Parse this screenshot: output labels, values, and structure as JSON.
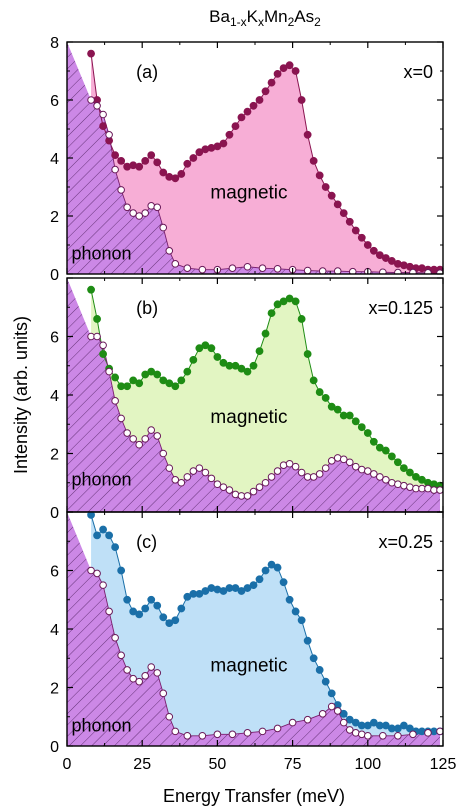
{
  "figure": {
    "title_main": "Ba",
    "title_sub1": "1-x",
    "title_k": "K",
    "title_sub2": "x",
    "title_mn": "Mn",
    "title_sub3": "2",
    "title_as": "As",
    "title_sub4": "2",
    "ylabel": "Intensity (arb. units)",
    "xlabel": "Energy Transfer (meV)"
  },
  "colors": {
    "phonon_hatch": "#cc88e6",
    "phonon_line": "#7a1f6e",
    "open_marker_edge": "#6a1a5a"
  },
  "chart_data": [
    {
      "type": "line",
      "panel": "(a)",
      "label": "x=0",
      "annotation_magnetic": "magnetic",
      "annotation_phonon": "phonon",
      "xlim": [
        0,
        125
      ],
      "ylim": [
        0,
        8
      ],
      "xticks": [
        0,
        25,
        50,
        75,
        100,
        125
      ],
      "yticks": [
        0,
        2,
        4,
        6,
        8
      ],
      "fill_color": "#f7aed6",
      "marker_color": "#8a1450",
      "series": [
        {
          "name": "total",
          "x": [
            8,
            10,
            12,
            14,
            16,
            18,
            20,
            22,
            24,
            26,
            28,
            30,
            32,
            34,
            36,
            38,
            40,
            42,
            44,
            46,
            48,
            50,
            52,
            54,
            56,
            58,
            60,
            62,
            64,
            66,
            68,
            70,
            72,
            74,
            76,
            78,
            80,
            82,
            84,
            86,
            88,
            90,
            92,
            94,
            96,
            98,
            100,
            102,
            104,
            106,
            108,
            110,
            112,
            114,
            116,
            118,
            120,
            122,
            124
          ],
          "y": [
            7.6,
            6.0,
            5.1,
            4.6,
            4.1,
            3.9,
            3.7,
            3.75,
            3.7,
            3.9,
            4.1,
            3.85,
            3.5,
            3.35,
            3.3,
            3.45,
            3.8,
            4.0,
            4.2,
            4.3,
            4.35,
            4.4,
            4.5,
            4.8,
            5.1,
            5.4,
            5.6,
            5.8,
            6.0,
            6.3,
            6.6,
            6.9,
            7.1,
            7.2,
            7.0,
            6.0,
            4.8,
            3.9,
            3.4,
            3.0,
            2.7,
            2.4,
            2.1,
            1.8,
            1.5,
            1.25,
            1.0,
            0.8,
            0.65,
            0.55,
            0.45,
            0.35,
            0.3,
            0.25,
            0.2,
            0.2,
            0.15,
            0.15,
            0.15
          ]
        },
        {
          "name": "phonon",
          "x": [
            8,
            10,
            12,
            14,
            16,
            18,
            20,
            22,
            24,
            26,
            28,
            30,
            32,
            34,
            36,
            40,
            45,
            50,
            55,
            60,
            65,
            70,
            75,
            80,
            85,
            90,
            95,
            100,
            105,
            110,
            115,
            120,
            124
          ],
          "y": [
            6.0,
            5.8,
            5.5,
            4.8,
            3.6,
            2.9,
            2.3,
            2.1,
            2.0,
            2.1,
            2.35,
            2.3,
            1.6,
            0.8,
            0.35,
            0.2,
            0.15,
            0.15,
            0.2,
            0.25,
            0.2,
            0.18,
            0.15,
            0.12,
            0.1,
            0.1,
            0.08,
            0.08,
            0.06,
            0.05,
            0.05,
            0.04,
            0.03
          ]
        }
      ]
    },
    {
      "type": "line",
      "panel": "(b)",
      "label": "x=0.125",
      "annotation_magnetic": "magnetic",
      "annotation_phonon": "phonon",
      "xlim": [
        0,
        125
      ],
      "ylim": [
        0,
        8
      ],
      "xticks": [
        0,
        25,
        50,
        75,
        100,
        125
      ],
      "yticks": [
        0,
        2,
        4,
        6,
        8
      ],
      "fill_color": "#e2f5c2",
      "marker_color": "#1e8c14",
      "series": [
        {
          "name": "total",
          "x": [
            8,
            10,
            12,
            14,
            16,
            18,
            20,
            22,
            24,
            26,
            28,
            30,
            32,
            34,
            36,
            38,
            40,
            42,
            44,
            46,
            48,
            50,
            52,
            54,
            56,
            58,
            60,
            62,
            64,
            66,
            68,
            70,
            72,
            74,
            76,
            78,
            80,
            82,
            84,
            86,
            88,
            90,
            92,
            94,
            96,
            98,
            100,
            102,
            104,
            106,
            108,
            110,
            112,
            114,
            116,
            118,
            120,
            122,
            124
          ],
          "y": [
            7.6,
            6.6,
            5.4,
            4.9,
            4.6,
            4.3,
            4.3,
            4.5,
            4.4,
            4.7,
            4.8,
            4.7,
            4.5,
            4.4,
            4.3,
            4.5,
            4.8,
            5.2,
            5.6,
            5.7,
            5.6,
            5.3,
            5.1,
            5.0,
            5.0,
            4.9,
            4.8,
            5.0,
            5.5,
            6.1,
            6.8,
            7.1,
            7.2,
            7.3,
            7.2,
            6.6,
            5.4,
            4.5,
            4.1,
            3.9,
            3.6,
            3.5,
            3.3,
            3.3,
            3.1,
            2.9,
            2.7,
            2.4,
            2.2,
            2.1,
            1.9,
            1.7,
            1.5,
            1.35,
            1.2,
            1.1,
            1.0,
            0.95,
            0.9
          ]
        },
        {
          "name": "phonon",
          "x": [
            8,
            10,
            12,
            14,
            16,
            18,
            20,
            22,
            24,
            26,
            28,
            30,
            32,
            34,
            36,
            38,
            40,
            42,
            44,
            46,
            48,
            50,
            52,
            54,
            56,
            58,
            60,
            62,
            64,
            66,
            68,
            70,
            72,
            74,
            76,
            78,
            80,
            82,
            84,
            86,
            88,
            90,
            92,
            94,
            96,
            98,
            100,
            102,
            104,
            106,
            108,
            110,
            112,
            114,
            116,
            118,
            120,
            122,
            124
          ],
          "y": [
            6.0,
            6.0,
            5.7,
            4.8,
            3.8,
            3.2,
            2.7,
            2.5,
            2.3,
            2.5,
            2.8,
            2.6,
            2.0,
            1.5,
            1.1,
            1.0,
            1.2,
            1.4,
            1.5,
            1.35,
            1.15,
            0.95,
            0.85,
            0.75,
            0.6,
            0.55,
            0.55,
            0.7,
            0.85,
            1.0,
            1.2,
            1.4,
            1.6,
            1.65,
            1.55,
            1.35,
            1.2,
            1.2,
            1.3,
            1.5,
            1.75,
            1.85,
            1.8,
            1.7,
            1.55,
            1.45,
            1.4,
            1.3,
            1.2,
            1.1,
            1.0,
            0.95,
            0.9,
            0.85,
            0.8,
            0.8,
            0.8,
            0.75,
            0.75
          ]
        }
      ]
    },
    {
      "type": "line",
      "panel": "(c)",
      "label": "x=0.25",
      "annotation_magnetic": "magnetic",
      "annotation_phonon": "phonon",
      "xlim": [
        0,
        125
      ],
      "ylim": [
        0,
        8
      ],
      "xticks": [
        0,
        25,
        50,
        75,
        100,
        125
      ],
      "yticks": [
        0,
        2,
        4,
        6,
        8
      ],
      "fill_color": "#bfe0f7",
      "marker_color": "#1a6fa8",
      "series": [
        {
          "name": "total",
          "x": [
            8,
            10,
            12,
            14,
            16,
            18,
            20,
            22,
            24,
            26,
            28,
            30,
            32,
            34,
            36,
            38,
            40,
            42,
            44,
            46,
            48,
            50,
            52,
            54,
            56,
            58,
            60,
            62,
            64,
            66,
            68,
            70,
            72,
            74,
            76,
            78,
            80,
            82,
            84,
            86,
            88,
            90,
            92,
            94,
            96,
            98,
            100,
            102,
            104,
            106,
            108,
            110,
            112,
            114,
            116,
            118,
            120,
            122,
            124
          ],
          "y": [
            7.9,
            7.2,
            7.4,
            7.2,
            6.8,
            6.0,
            5.0,
            4.6,
            4.5,
            4.7,
            5.0,
            4.8,
            4.4,
            4.2,
            4.3,
            4.7,
            5.1,
            5.2,
            5.2,
            5.3,
            5.4,
            5.35,
            5.3,
            5.4,
            5.4,
            5.3,
            5.4,
            5.5,
            5.7,
            6.0,
            6.2,
            6.1,
            5.6,
            5.0,
            4.6,
            4.3,
            3.6,
            3.0,
            2.6,
            2.2,
            1.8,
            1.4,
            1.1,
            0.9,
            0.8,
            0.7,
            0.7,
            0.8,
            0.7,
            0.7,
            0.6,
            0.6,
            0.7,
            0.6,
            0.5,
            0.5,
            0.5,
            0.5,
            0.5
          ]
        },
        {
          "name": "phonon",
          "x": [
            8,
            10,
            12,
            14,
            16,
            18,
            20,
            22,
            24,
            26,
            28,
            30,
            32,
            34,
            36,
            40,
            45,
            50,
            55,
            60,
            65,
            70,
            75,
            80,
            85,
            88,
            90,
            92,
            94,
            96,
            98,
            100,
            105,
            110,
            115,
            120,
            124
          ],
          "y": [
            6.0,
            5.9,
            5.5,
            4.6,
            3.7,
            3.1,
            2.6,
            2.3,
            2.2,
            2.4,
            2.7,
            2.5,
            1.8,
            1.0,
            0.5,
            0.35,
            0.35,
            0.4,
            0.4,
            0.45,
            0.5,
            0.6,
            0.8,
            0.9,
            1.1,
            1.35,
            1.2,
            0.8,
            0.55,
            0.45,
            0.4,
            0.35,
            0.35,
            0.35,
            0.4,
            0.45,
            0.5
          ]
        }
      ]
    }
  ]
}
